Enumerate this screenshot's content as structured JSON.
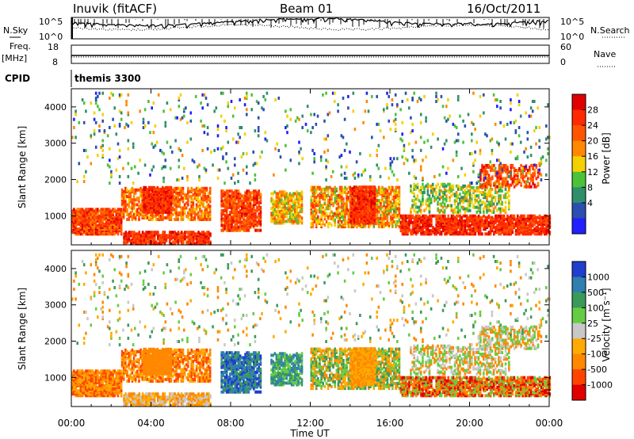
{
  "header": {
    "station": "Inuvik (fitACF)",
    "beam": "Beam 01",
    "date": "16/Oct/2011"
  },
  "noise_panel": {
    "left_label": "N.Sky",
    "right_label": "N.Search",
    "tick_top": "10^5",
    "tick_bottom": "10^0"
  },
  "freq_panel": {
    "left_label_1": "Freq.",
    "left_label_2": "[MHz]",
    "right_label": "Nave",
    "left_ticks": [
      "18",
      "8"
    ],
    "right_ticks": [
      "60",
      "0"
    ]
  },
  "cpid_panel": {
    "label": "CPID",
    "value": "themis 3300"
  },
  "chart_data": [
    {
      "type": "heatmap",
      "name": "power",
      "ylabel": "Slant Range [km]",
      "yticks": [
        "1000",
        "2000",
        "3000",
        "4000"
      ],
      "ylim": [
        200,
        4500
      ],
      "xlim": [
        0,
        24
      ],
      "colorbar_label": "Power [dB]",
      "colorbar_ticks": [
        "4",
        "8",
        "12",
        "16",
        "20",
        "24",
        "28"
      ],
      "colors": [
        "#1f1fff",
        "#2a4fb0",
        "#2f8f6a",
        "#4cc23a",
        "#f5d000",
        "#ff8800",
        "#ff5500",
        "#ff2a00",
        "#e00000"
      ]
    },
    {
      "type": "heatmap",
      "name": "velocity",
      "ylabel": "Slant Range [km]",
      "yticks": [
        "1000",
        "2000",
        "3000",
        "4000"
      ],
      "ylim": [
        200,
        4500
      ],
      "xlim": [
        0,
        24
      ],
      "colorbar_label": "Velocity [m s⁻¹]",
      "colorbar_ticks": [
        "1000",
        "500",
        "100",
        "25",
        "-25",
        "-100",
        "-500",
        "-1000"
      ],
      "colors": [
        "#1f3fcc",
        "#2f7fb0",
        "#3a9a5a",
        "#66cc44",
        "#c8c8c8",
        "#ffaa00",
        "#ff8800",
        "#ff4400",
        "#e00000"
      ],
      "xlabel": "Time UT",
      "xticks": [
        "00:00",
        "04:00",
        "08:00",
        "12:00",
        "16:00",
        "20:00",
        "00:00"
      ]
    }
  ]
}
